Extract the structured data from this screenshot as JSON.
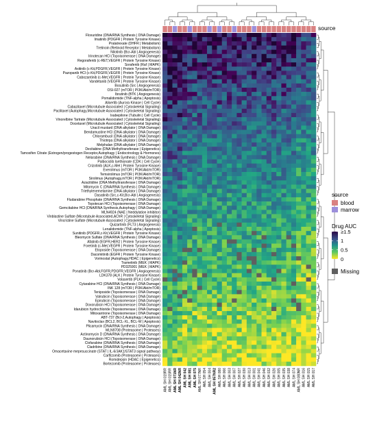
{
  "chart_data": {
    "type": "heatmap",
    "title": "",
    "row_labels": [
      "Floxuridine (DNA/RNA Synthesis | DNA Damage)",
      "Imatinib (PDGFR | Protein Tyrosine Kinase)",
      "Pralatrexate (DHFR | Metabolism)",
      "Tretinoin (Retinoid Receptor | Metabolism)",
      "Nilotinib (Bcr-Abl | Angiogenesis)",
      "Irinotecan HCl (Topoisomerase | DNA Damage)",
      "Regorafenib (c-RET,VEGFR | Protein Tyrosine Kinase)",
      "Sorafenib (Raf | MAPK)",
      "Axitinib (c-Kit,PDGFR,VEGFR | Protein Tyrosine Kinase)",
      "Pazopanib HCl (c-Kit,PDGFR,VEGFR | Protein Tyrosine Kinase)",
      "Cabozantinib (c-Met,VEGFR | Protein Tyrosine Kinase)",
      "Vandetanib (VEGFR | Protein Tyrosine Kinase)",
      "Bosutinib (Src | Angiogenesis)",
      "OSI-027 (mTOR | PI3K/Akt/mTOR)",
      "Ibrutinib (BTK | Angiogenesis)",
      "Pomalidomide (TNF-alpha | Apoptosis)",
      "Alisertib (Aurora Kinase | Cell Cycle)",
      "Cabazitaxel (Microtubule Associated | Cytoskeletal Signaling)",
      "Paclitaxel (Autophagy,Microtubule Associated | Cytoskeletal Signaling)",
      "Ixabepilone (Tubulin | Cell Cycle)",
      "Vinorelbine Tartrate (Microtubule Associated | Cytoskeletal Signaling)",
      "Docetaxel (Microtubule Associated | Cytoskeletal Signaling)",
      "Uracil mustard (DNA alkylator | DNA Damage)",
      "Bendamustine HCl (DNA alkylator | DNA Damage)",
      "Chlorambucil (DNA alkylator | DNA Damage)",
      "Thiotepa (DNA alkylator | DNA Damage)",
      "Melphalan (DNA alkylator | DNA Damage)",
      "Decitabine (DNA Methyltransferase | Epigenetics)",
      "Tamoxifen Citrate (Estrogen/progestogen Receptor,Autophagy | Endocrinology & Hormones)",
      "Nelarabine (DNA/RNA Synthesis | DNA Damage)",
      "Palbociclib Isethionate (CDK | Cell Cycle)",
      "Crizotinib (ALK,c-Met | Protein Tyrosine Kinase)",
      "Everolimus (mTOR | PI3K/Akt/mTOR)",
      "Temsirolimus (mTOR | PI3K/Akt/mTOR)",
      "Sirolimus (Autophagy,mTOR | PI3K/Akt/mTOR)",
      "Azacitidine (DNA Methyltransferase | DNA Damage)",
      "Mitomycin C (DNA/RNA Synthesis | DNA Damage)",
      "Triethylenemelamine (DNA alkylator | DNA Damage)",
      "Dasatinib (Src,c-Kit,Bcr-Abl | Angiogenesis)",
      "Fludarabine Phosphate (DNA/RNA Synthesis | DNA Damage)",
      "Topotecan HCl (Topoisomerase | DNA Damage)",
      "Gemcitabine HCl (DNA/RNA Synthesis,Autophagy | DNA Damage)",
      "MLN4924 (NAE | Neddylation inhibitor)",
      "Vinblastine Sulfate (Microtubule Associated,AChR | Cytoskeletal Signaling)",
      "Vincristine Sulfate (Microtubule Associated | Cytoskeletal Signaling)",
      "Quizartinib (FLT3 | Angiogenesis)",
      "Lenalidomide (TNF-alpha | Apoptosis)",
      "Sunitinib (PDGFR,c-Kit,VEGFR | Protein Tyrosine Kinase)",
      "Bleomycin Sulfate (DNA/RNA Synthesis | DNA Damage)",
      "Afatinib (EGFR,HER2 | Protein Tyrosine Kinase)",
      "Foretinib (c-Met,VEGFR | Protein Tyrosine Kinase)",
      "Etoposide (Topoisomerase | DNA Damage)",
      "Dacomitinib (EGFR | Protein Tyrosine Kinase)",
      "Vorinostat (Autophagy,HDAC | Epigenetics)",
      "Trametinib (MEK | MAPK)",
      "PD325901 (MEK | MAPK)",
      "Ponatinib (Bcr-Abl,FGFR,PDGFR,VEGFR | Angiogenesis)",
      "LDK378 (ALK | Protein Tyrosine Kinase)",
      "Volasertib (PLK | Cell Cycle)",
      "Cytarabine HCl (DNA/RNA Synthesis | DNA Damage)",
      "INK 128 (mTOR | PI3K/Akt/mTOR)",
      "Teniposide (Topoisomerase | DNA Damage)",
      "Valrubicin (Topoisomerase | DNA Damage)",
      "Epirubicin (Topoisomerase | DNA Damage)",
      "Doxorubicin HCl (Topoisomerase | DNA Damage)",
      "Idarubicin hydrochloride (Topoisomerase | DNA Damage)",
      "Mitoxantrone (Topoisomerase | DNA Damage)",
      "ABT-737 (Bcl-2,Autophagy | Apoptosis)",
      "Navitoclax (BCL2, BCL-XL, BCL-W | Apoptosis)",
      "Plicamycin (DNA/RNA Synthesis | DNA Damage)",
      "MLN9708 (Proteasome | Proteases)",
      "Actinomycin D (DNA/RNA Synthesis | DNA Damage)",
      "Daunorubicin HCl (Topoisomerase | DNA Damage)",
      "Clofarabine (DNA/RNA Synthesis | DNA Damage)",
      "Cladribine (DNA/RNA Synthesis | DNA Damage)",
      "Omacetaxine mepesuccinate (STAT | IL-6/JAK1/STAT3 signal pathway)",
      "Carfilzomib (Proteasome | Proteases)",
      "Romidepsin (HDAC | Epigenetics)",
      "Bortezomib (Proteasome | Proteases)"
    ],
    "column_labels": [
      "AML SH 019RR",
      "AML SH 015RR",
      "AML SH 071NR",
      "AML SH 042NR",
      "AML SH 042",
      "AML SH 081",
      "AML SH 075",
      "AML SH 077NR",
      "AML SH 054",
      "AML SH 004",
      "AML SH 057NR2",
      "AML SH 080",
      "AML SH 066",
      "AML SH 003",
      "AML SH 007",
      "AML SH 027",
      "AML SH 030",
      "AML SH 013",
      "AML SH 001",
      "AML SH 041",
      "AML SH 046",
      "AML SH 032",
      "AML SH 026",
      "AML SH 005",
      "AML SH 035",
      "AML SH 038",
      "AML SH 074",
      "AML SH 080NR",
      "AML SH 016",
      "AML SH 015",
      "AML SH 017"
    ],
    "bold_columns": [
      2,
      3,
      4,
      5,
      6,
      10
    ],
    "source_annotation": {
      "label": "source",
      "values": [
        "blood",
        "blood",
        "marrow",
        "blood",
        "blood",
        "marrow",
        "blood",
        "blood",
        "blood",
        "marrow",
        "blood",
        "marrow",
        "blood",
        "blood",
        "marrow",
        "blood",
        "blood",
        "blood",
        "marrow",
        "blood",
        "blood",
        "blood",
        "blood",
        "blood",
        "blood",
        "blood",
        "blood",
        "blood",
        "blood",
        "blood",
        "blood"
      ]
    },
    "value_label": "Drug AUC",
    "color_scale": {
      "ticks": [
        {
          "value": 1.5,
          "label": "≥1.5"
        },
        {
          "value": 1.0,
          "label": "1"
        },
        {
          "value": 0.5,
          "label": "0.5"
        },
        {
          "value": 0.0,
          "label": "0"
        }
      ],
      "range": [
        0,
        1.5
      ],
      "stops": [
        "#fde725",
        "#5ec962",
        "#21918c",
        "#3b528b",
        "#440154",
        "#1e0533"
      ]
    },
    "missing": {
      "label": "Missing",
      "color": "#5f5f5f"
    },
    "annotation_colors": {
      "blood": "#d98282",
      "marrow": "#9c8fdb"
    },
    "legend": {
      "source_title": "source",
      "source_items": [
        "blood",
        "marrow"
      ]
    }
  }
}
